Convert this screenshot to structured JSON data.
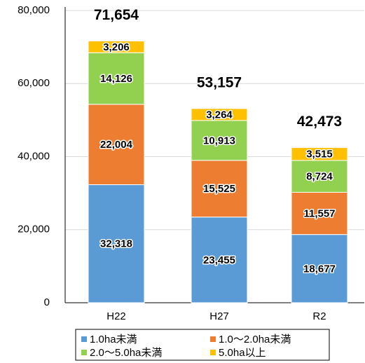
{
  "chart_data": {
    "type": "stacked_bar",
    "categories": [
      "H22",
      "H27",
      "R2"
    ],
    "series": [
      {
        "name": "1.0ha未満",
        "color": "#5b9bd5",
        "values": [
          32318,
          23455,
          18677
        ],
        "value_labels": [
          "32,318",
          "23,455",
          "18,677"
        ]
      },
      {
        "name": "1.0～2.0ha未満",
        "color": "#ed7d31",
        "values": [
          22004,
          15525,
          11557
        ],
        "value_labels": [
          "22,004",
          "15,525",
          "11,557"
        ]
      },
      {
        "name": "2.0～5.0ha未満",
        "color": "#92d050",
        "values": [
          14126,
          10913,
          8724
        ],
        "value_labels": [
          "14,126",
          "10,913",
          "8,724"
        ]
      },
      {
        "name": "5.0ha以上",
        "color": "#ffc000",
        "values": [
          3206,
          3264,
          3515
        ],
        "value_labels": [
          "3,206",
          "3,264",
          "3,515"
        ]
      }
    ],
    "totals": [
      71654,
      53157,
      42473
    ],
    "total_labels": [
      "71,654",
      "53,157",
      "42,473"
    ],
    "ylim": [
      0,
      80000
    ],
    "yticks": [
      0,
      {
        "value": 20000,
        "label": "20,000"
      },
      {
        "value": 40000,
        "label": "40,000"
      },
      {
        "value": 60000,
        "label": "60,000"
      },
      {
        "value": 80000,
        "label": "80,000"
      }
    ],
    "grid": true,
    "legend": "bottom"
  }
}
